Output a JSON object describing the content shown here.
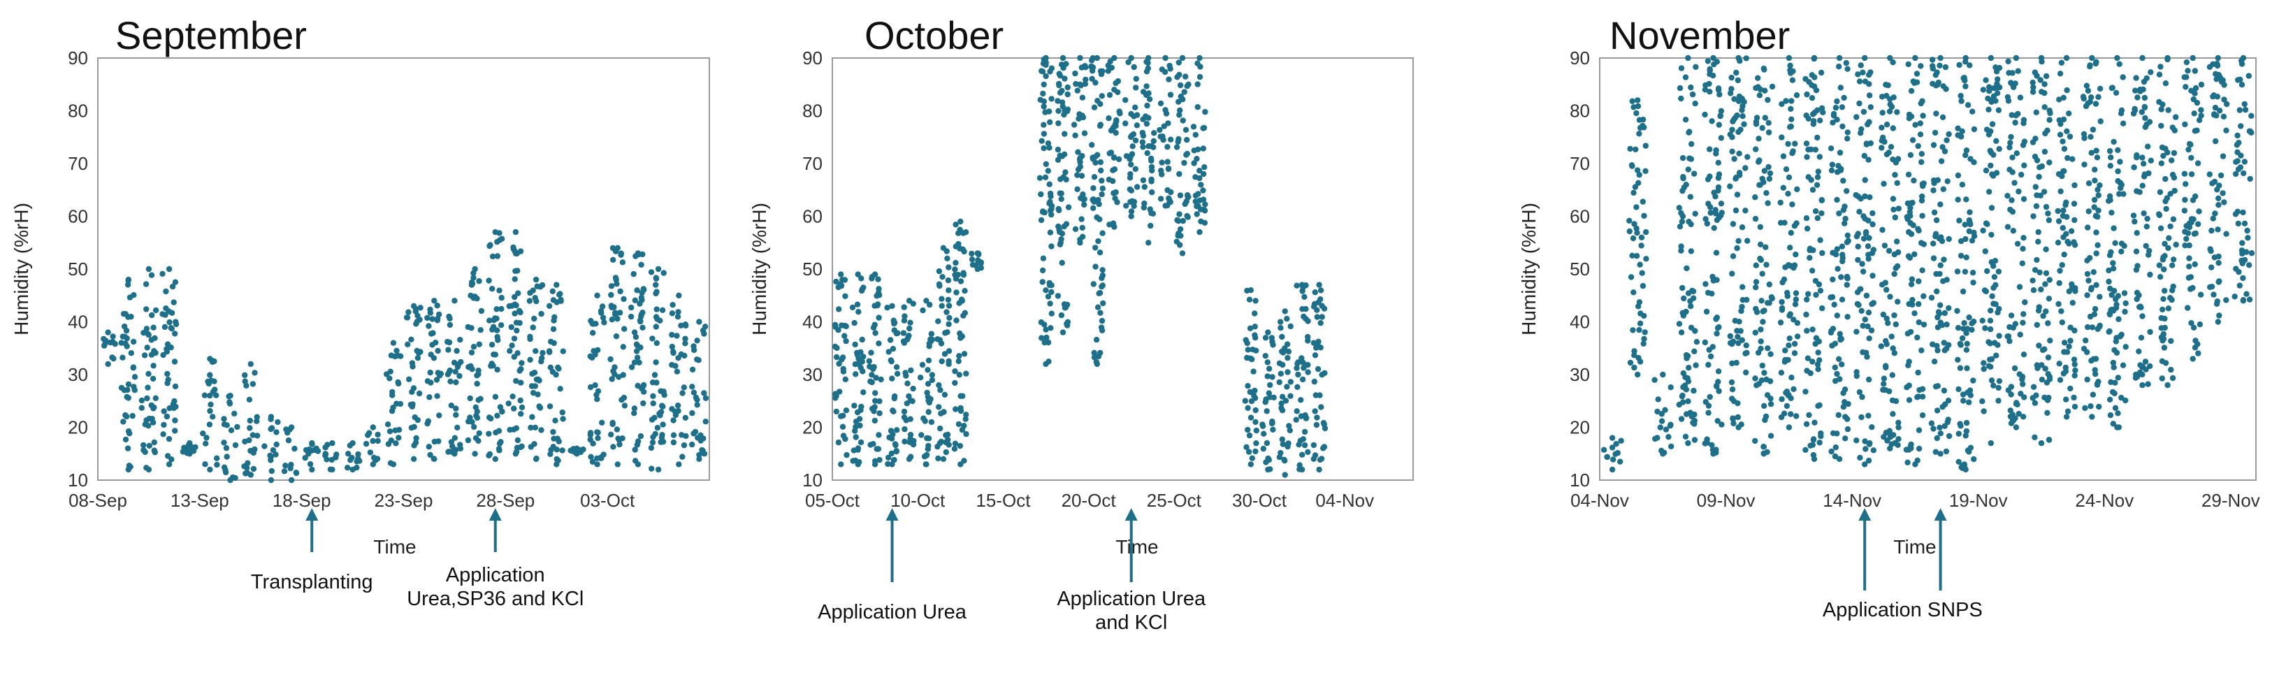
{
  "figure": {
    "marker_color": "#1e6f8a",
    "annotation_color": "#1e6f8a",
    "arrow_icon": "up-arrow-icon"
  },
  "chart_data": [
    {
      "type": "scatter",
      "title": "September",
      "xlabel": "Time",
      "ylabel": "Humidity (%rH)",
      "ylim": [
        10,
        90
      ],
      "yticks": [
        10,
        20,
        30,
        40,
        50,
        60,
        70,
        80,
        90
      ],
      "xlim": [
        "2024-09-08",
        "2024-10-08"
      ],
      "xticks": [
        "08-Sep",
        "13-Sep",
        "18-Sep",
        "23-Sep",
        "28-Sep",
        "03-Oct"
      ],
      "grid": false,
      "legend": "none",
      "x_precision": "daily cycle (min / max humidity per day)",
      "series": [
        {
          "daily": [
            {
              "x": "2024-09-08",
              "min": 32,
              "max": 38
            },
            {
              "x": "2024-09-09",
              "min": 12,
              "max": 48
            },
            {
              "x": "2024-09-10",
              "min": 12,
              "max": 50
            },
            {
              "x": "2024-09-11",
              "min": 13,
              "max": 50
            },
            {
              "x": "2024-09-12",
              "min": 15,
              "max": 17
            },
            {
              "x": "2024-09-13",
              "min": 12,
              "max": 33
            },
            {
              "x": "2024-09-14",
              "min": 10,
              "max": 26
            },
            {
              "x": "2024-09-15",
              "min": 11,
              "max": 32
            },
            {
              "x": "2024-09-16",
              "min": 10,
              "max": 22
            },
            {
              "x": "2024-09-17",
              "min": 10,
              "max": 20
            },
            {
              "x": "2024-09-18",
              "min": 12,
              "max": 17
            },
            {
              "x": "2024-09-19",
              "min": 12,
              "max": 17
            },
            {
              "x": "2024-09-20",
              "min": 12,
              "max": 17
            },
            {
              "x": "2024-09-21",
              "min": 13,
              "max": 20
            },
            {
              "x": "2024-09-22",
              "min": 13,
              "max": 36
            },
            {
              "x": "2024-09-23",
              "min": 14,
              "max": 43
            },
            {
              "x": "2024-09-24",
              "min": 14,
              "max": 44
            },
            {
              "x": "2024-09-25",
              "min": 15,
              "max": 44
            },
            {
              "x": "2024-09-26",
              "min": 15,
              "max": 50
            },
            {
              "x": "2024-09-27",
              "min": 14,
              "max": 57
            },
            {
              "x": "2024-09-28",
              "min": 15,
              "max": 57
            },
            {
              "x": "2024-09-29",
              "min": 14,
              "max": 48
            },
            {
              "x": "2024-09-30",
              "min": 13,
              "max": 47
            },
            {
              "x": "2024-10-01",
              "min": 15,
              "max": 16
            },
            {
              "x": "2024-10-02",
              "min": 13,
              "max": 45
            },
            {
              "x": "2024-10-03",
              "min": 13,
              "max": 54
            },
            {
              "x": "2024-10-04",
              "min": 13,
              "max": 53
            },
            {
              "x": "2024-10-05",
              "min": 12,
              "max": 50
            },
            {
              "x": "2024-10-06",
              "min": 13,
              "max": 45
            },
            {
              "x": "2024-10-07",
              "min": 14,
              "max": 40
            }
          ]
        }
      ],
      "annotations": [
        {
          "x": "2024-09-18",
          "lines": [
            "Transplanting"
          ]
        },
        {
          "x": "2024-09-27",
          "lines": [
            "Application",
            "Urea,SP36 and KCl"
          ]
        }
      ]
    },
    {
      "type": "scatter",
      "title": "October",
      "xlabel": "Time",
      "ylabel": "Humidity (%rH)",
      "ylim": [
        10,
        90
      ],
      "yticks": [
        10,
        20,
        30,
        40,
        50,
        60,
        70,
        80,
        90
      ],
      "xlim": [
        "2024-10-05",
        "2024-11-08"
      ],
      "xticks": [
        "05-Oct",
        "10-Oct",
        "15-Oct",
        "20-Oct",
        "25-Oct",
        "30-Oct",
        "04-Nov"
      ],
      "grid": false,
      "legend": "none",
      "x_precision": "daily cycle (min / max humidity per day)",
      "series": [
        {
          "daily": [
            {
              "x": "2024-10-05",
              "min": 13,
              "max": 49
            },
            {
              "x": "2024-10-06",
              "min": 13,
              "max": 49
            },
            {
              "x": "2024-10-07",
              "min": 13,
              "max": 49
            },
            {
              "x": "2024-10-08",
              "min": 13,
              "max": 43
            },
            {
              "x": "2024-10-09",
              "min": 14,
              "max": 44
            },
            {
              "x": "2024-10-10",
              "min": 13,
              "max": 44
            },
            {
              "x": "2024-10-11",
              "min": 14,
              "max": 54
            },
            {
              "x": "2024-10-12",
              "min": 13,
              "max": 59
            },
            {
              "x": "2024-10-13",
              "min": 50,
              "max": 53
            },
            {
              "x": "2024-10-17",
              "min": 32,
              "max": 90
            },
            {
              "x": "2024-10-18",
              "min": 38,
              "max": 90
            },
            {
              "x": "2024-10-19",
              "min": 55,
              "max": 90
            },
            {
              "x": "2024-10-20",
              "min": 32,
              "max": 90
            },
            {
              "x": "2024-10-21",
              "min": 58,
              "max": 90
            },
            {
              "x": "2024-10-22",
              "min": 60,
              "max": 90
            },
            {
              "x": "2024-10-23",
              "min": 55,
              "max": 90
            },
            {
              "x": "2024-10-24",
              "min": 62,
              "max": 90
            },
            {
              "x": "2024-10-25",
              "min": 53,
              "max": 90
            },
            {
              "x": "2024-10-26",
              "min": 57,
              "max": 90
            },
            {
              "x": "2024-10-29",
              "min": 13,
              "max": 46
            },
            {
              "x": "2024-10-30",
              "min": 12,
              "max": 38
            },
            {
              "x": "2024-10-31",
              "min": 11,
              "max": 42
            },
            {
              "x": "2024-11-01",
              "min": 12,
              "max": 47
            },
            {
              "x": "2024-11-02",
              "min": 12,
              "max": 47
            }
          ]
        }
      ],
      "annotations": [
        {
          "x": "2024-10-08",
          "lines": [
            "Application Urea"
          ]
        },
        {
          "x": "2024-10-22",
          "lines": [
            "Application Urea",
            "and KCl"
          ]
        }
      ]
    },
    {
      "type": "scatter",
      "title": "November",
      "xlabel": "Time",
      "ylabel": "Humidity (%rH)",
      "ylim": [
        10,
        90
      ],
      "yticks": [
        10,
        20,
        30,
        40,
        50,
        60,
        70,
        80,
        90
      ],
      "xlim": [
        "2024-11-04",
        "2024-11-30"
      ],
      "xticks": [
        "04-Nov",
        "09-Nov",
        "14-Nov",
        "19-Nov",
        "24-Nov",
        "29-Nov"
      ],
      "grid": false,
      "legend": "none",
      "x_precision": "daily cycle (min / max humidity per day)",
      "series": [
        {
          "daily": [
            {
              "x": "2024-11-04",
              "min": 12,
              "max": 18
            },
            {
              "x": "2024-11-05",
              "min": 30,
              "max": 82
            },
            {
              "x": "2024-11-06",
              "min": 15,
              "max": 30
            },
            {
              "x": "2024-11-07",
              "min": 17,
              "max": 90
            },
            {
              "x": "2024-11-08",
              "min": 15,
              "max": 90
            },
            {
              "x": "2024-11-09",
              "min": 20,
              "max": 90
            },
            {
              "x": "2024-11-10",
              "min": 15,
              "max": 88
            },
            {
              "x": "2024-11-11",
              "min": 20,
              "max": 90
            },
            {
              "x": "2024-11-12",
              "min": 14,
              "max": 90
            },
            {
              "x": "2024-11-13",
              "min": 14,
              "max": 90
            },
            {
              "x": "2024-11-14",
              "min": 13,
              "max": 90
            },
            {
              "x": "2024-11-15",
              "min": 16,
              "max": 90
            },
            {
              "x": "2024-11-16",
              "min": 13,
              "max": 90
            },
            {
              "x": "2024-11-17",
              "min": 15,
              "max": 90
            },
            {
              "x": "2024-11-18",
              "min": 12,
              "max": 90
            },
            {
              "x": "2024-11-19",
              "min": 17,
              "max": 90
            },
            {
              "x": "2024-11-20",
              "min": 20,
              "max": 90
            },
            {
              "x": "2024-11-21",
              "min": 17,
              "max": 90
            },
            {
              "x": "2024-11-22",
              "min": 22,
              "max": 90
            },
            {
              "x": "2024-11-23",
              "min": 22,
              "max": 90
            },
            {
              "x": "2024-11-24",
              "min": 20,
              "max": 90
            },
            {
              "x": "2024-11-25",
              "min": 28,
              "max": 90
            },
            {
              "x": "2024-11-26",
              "min": 28,
              "max": 90
            },
            {
              "x": "2024-11-27",
              "min": 33,
              "max": 90
            },
            {
              "x": "2024-11-28",
              "min": 40,
              "max": 90
            },
            {
              "x": "2024-11-29",
              "min": 44,
              "max": 90
            }
          ]
        }
      ],
      "annotations": [
        {
          "x": "2024-11-14",
          "lines": [
            "Application SNPS"
          ],
          "arrows": [
            "2024-11-14",
            "2024-11-17"
          ]
        }
      ]
    }
  ]
}
